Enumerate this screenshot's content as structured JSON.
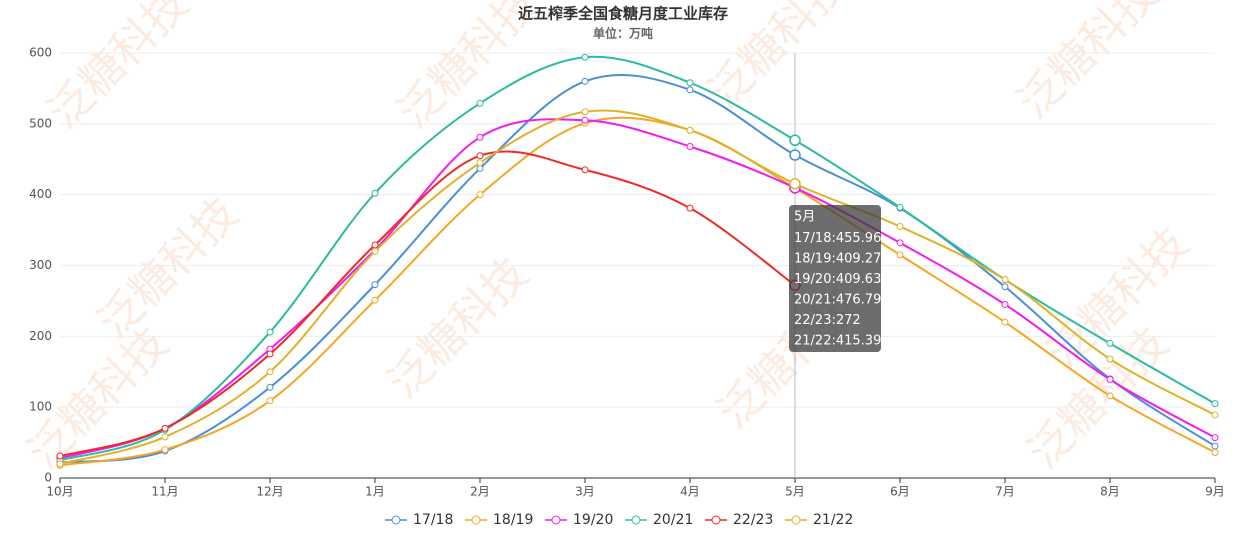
{
  "chart_data": {
    "type": "line",
    "title": "近五榨季全国食糖月度工业库存",
    "subtitle": "单位：万吨",
    "watermark": "泛糖科技",
    "categories": [
      "10月",
      "11月",
      "12月",
      "1月",
      "2月",
      "3月",
      "4月",
      "5月",
      "6月",
      "7月",
      "8月",
      "9月"
    ],
    "series": [
      {
        "name": "17/18",
        "color": "#4a8fd6",
        "values": [
          22,
          38,
          128,
          273,
          437,
          560,
          548,
          455.96,
          381,
          270,
          140,
          45
        ]
      },
      {
        "name": "18/19",
        "color": "#f5a623",
        "values": [
          18,
          40,
          109,
          251,
          400,
          501,
          491,
          409.27,
          315,
          220,
          116,
          36
        ]
      },
      {
        "name": "19/20",
        "color": "#f01df0",
        "values": [
          28,
          70,
          182,
          322,
          481,
          505,
          468,
          409.63,
          332,
          245,
          139,
          57
        ]
      },
      {
        "name": "20/21",
        "color": "#2bbba1",
        "values": [
          25,
          68,
          206,
          402,
          529,
          594,
          558,
          476.79,
          382,
          280,
          190,
          105
        ]
      },
      {
        "name": "22/23",
        "color": "#ee2a24",
        "values": [
          31,
          70,
          175,
          329,
          455,
          435,
          381,
          272,
          null,
          null,
          null,
          null
        ]
      },
      {
        "name": "21/22",
        "color": "#e0b12a",
        "values": [
          20,
          58,
          150,
          320,
          445,
          517,
          491,
          415.39,
          355,
          280,
          168,
          89
        ]
      }
    ],
    "ylim": [
      0,
      600
    ],
    "yticks": [
      0,
      100,
      200,
      300,
      400,
      500,
      600
    ],
    "grid": true,
    "tooltip_index": 7,
    "tooltip_separator": ":"
  }
}
